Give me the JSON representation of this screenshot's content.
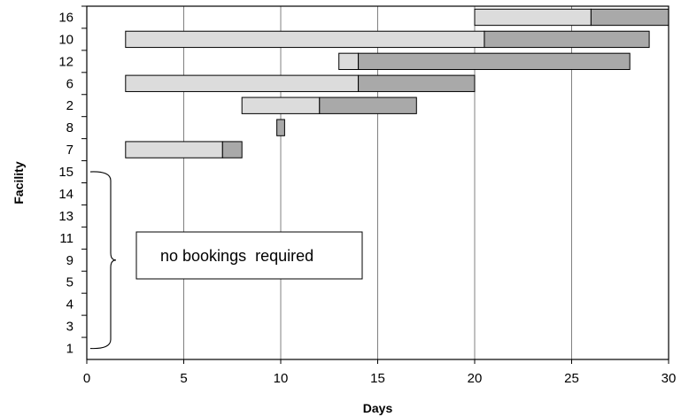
{
  "chart_data": {
    "type": "bar",
    "orientation": "horizontal-gantt",
    "xlabel": "Days",
    "ylabel": "Facility",
    "xlim": [
      0,
      30
    ],
    "xticks": [
      "0",
      "5",
      "10",
      "15",
      "20",
      "25",
      "30"
    ],
    "grid": "vertical",
    "categories": [
      "16",
      "10",
      "12",
      "6",
      "2",
      "8",
      "7",
      "15",
      "14",
      "13",
      "11",
      "9",
      "5",
      "4",
      "3",
      "1"
    ],
    "bars": [
      {
        "facility": "16",
        "start": 20,
        "split": 26,
        "end": 30
      },
      {
        "facility": "10",
        "start": 2,
        "split": 20.5,
        "end": 29
      },
      {
        "facility": "12",
        "start": 13,
        "split": 14,
        "end": 28
      },
      {
        "facility": "6",
        "start": 2,
        "split": 14,
        "end": 20
      },
      {
        "facility": "2",
        "start": 8,
        "split": 12,
        "end": 17
      },
      {
        "facility": "8",
        "start": 9.8,
        "split": 9.8,
        "end": 10.2
      },
      {
        "facility": "7",
        "start": 2,
        "split": 7,
        "end": 8
      }
    ],
    "colors": {
      "first_segment": "#dcdcdc",
      "second_segment": "#a9a9a9",
      "edge": "#000000",
      "grid": "#808080"
    },
    "annotation": {
      "text": "no bookings  required",
      "applies_to": [
        "15",
        "14",
        "13",
        "11",
        "9",
        "5",
        "4",
        "3",
        "1"
      ]
    }
  }
}
